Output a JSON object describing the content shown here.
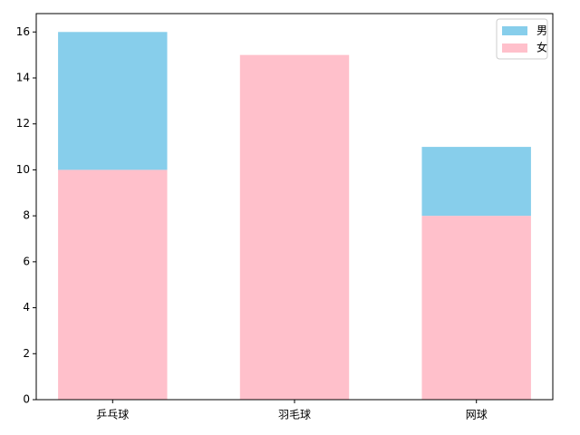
{
  "chart_data": {
    "type": "stacked_bar",
    "categories": [
      "乒乓球",
      "羽毛球",
      "网球"
    ],
    "series": [
      {
        "name": "男",
        "color": "#87ceeb",
        "values": [
          6,
          0,
          3
        ]
      },
      {
        "name": "女",
        "color": "#ffc0cb",
        "values": [
          10,
          15,
          8
        ]
      }
    ],
    "stack_order": [
      "女",
      "男"
    ],
    "ylim": [
      0,
      16.8
    ],
    "yticks": [
      0,
      2,
      4,
      6,
      8,
      10,
      12,
      14,
      16
    ],
    "legend": "upper right"
  }
}
